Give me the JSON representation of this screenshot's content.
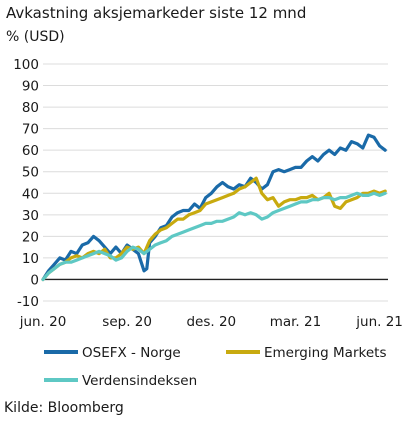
{
  "chart_data": {
    "type": "line",
    "title": "Avkastning aksjemarkeder siste 12 mnd",
    "ylabel": "% (USD)",
    "xlabel": "",
    "source": "Kilde: Bloomberg",
    "ylim": [
      -10,
      100
    ],
    "yticks": [
      -10,
      0,
      10,
      20,
      30,
      40,
      50,
      60,
      70,
      80,
      90,
      100
    ],
    "xlim": [
      0,
      12.3
    ],
    "xticks": [
      {
        "label": "jun. 20",
        "pos": 0
      },
      {
        "label": "sep. 20",
        "pos": 3
      },
      {
        "label": "des. 20",
        "pos": 6
      },
      {
        "label": "mar. 21",
        "pos": 9
      },
      {
        "label": "jun. 21",
        "pos": 12
      }
    ],
    "grid": true,
    "legend_position": "bottom",
    "series": [
      {
        "name": "OSEFX - Norge",
        "color": "#1a6aa8",
        "points": [
          [
            0.0,
            0
          ],
          [
            0.2,
            4
          ],
          [
            0.4,
            7
          ],
          [
            0.6,
            10
          ],
          [
            0.8,
            9
          ],
          [
            1.0,
            13
          ],
          [
            1.2,
            12
          ],
          [
            1.4,
            16
          ],
          [
            1.6,
            17
          ],
          [
            1.8,
            20
          ],
          [
            2.0,
            18
          ],
          [
            2.2,
            15
          ],
          [
            2.4,
            12
          ],
          [
            2.6,
            15
          ],
          [
            2.8,
            12
          ],
          [
            3.0,
            16
          ],
          [
            3.2,
            14
          ],
          [
            3.4,
            12
          ],
          [
            3.5,
            8
          ],
          [
            3.6,
            4
          ],
          [
            3.7,
            5
          ],
          [
            3.8,
            17
          ],
          [
            4.0,
            20
          ],
          [
            4.2,
            24
          ],
          [
            4.4,
            25
          ],
          [
            4.6,
            29
          ],
          [
            4.8,
            31
          ],
          [
            5.0,
            32
          ],
          [
            5.2,
            32
          ],
          [
            5.4,
            35
          ],
          [
            5.6,
            33
          ],
          [
            5.8,
            38
          ],
          [
            6.0,
            40
          ],
          [
            6.2,
            43
          ],
          [
            6.4,
            45
          ],
          [
            6.6,
            43
          ],
          [
            6.8,
            42
          ],
          [
            7.0,
            44
          ],
          [
            7.2,
            43
          ],
          [
            7.4,
            47
          ],
          [
            7.6,
            45
          ],
          [
            7.8,
            42
          ],
          [
            8.0,
            44
          ],
          [
            8.2,
            50
          ],
          [
            8.4,
            51
          ],
          [
            8.6,
            50
          ],
          [
            8.8,
            51
          ],
          [
            9.0,
            52
          ],
          [
            9.2,
            52
          ],
          [
            9.4,
            55
          ],
          [
            9.6,
            57
          ],
          [
            9.8,
            55
          ],
          [
            10.0,
            58
          ],
          [
            10.2,
            60
          ],
          [
            10.4,
            58
          ],
          [
            10.6,
            61
          ],
          [
            10.8,
            60
          ],
          [
            11.0,
            64
          ],
          [
            11.2,
            63
          ],
          [
            11.4,
            61
          ],
          [
            11.6,
            67
          ],
          [
            11.8,
            66
          ],
          [
            12.0,
            62
          ],
          [
            12.2,
            60
          ]
        ]
      },
      {
        "name": "Emerging Markets",
        "color": "#c8aa0f",
        "points": [
          [
            0.0,
            0
          ],
          [
            0.2,
            3
          ],
          [
            0.4,
            5
          ],
          [
            0.6,
            7
          ],
          [
            0.8,
            8
          ],
          [
            1.0,
            10
          ],
          [
            1.2,
            11
          ],
          [
            1.4,
            10
          ],
          [
            1.6,
            12
          ],
          [
            1.8,
            13
          ],
          [
            2.0,
            12
          ],
          [
            2.2,
            14
          ],
          [
            2.4,
            10
          ],
          [
            2.6,
            10
          ],
          [
            2.8,
            12
          ],
          [
            3.0,
            15
          ],
          [
            3.2,
            14
          ],
          [
            3.4,
            15
          ],
          [
            3.6,
            12
          ],
          [
            3.8,
            18
          ],
          [
            4.0,
            21
          ],
          [
            4.2,
            23
          ],
          [
            4.4,
            24
          ],
          [
            4.6,
            26
          ],
          [
            4.8,
            28
          ],
          [
            5.0,
            28
          ],
          [
            5.2,
            30
          ],
          [
            5.4,
            31
          ],
          [
            5.6,
            32
          ],
          [
            5.8,
            35
          ],
          [
            6.0,
            36
          ],
          [
            6.2,
            37
          ],
          [
            6.4,
            38
          ],
          [
            6.6,
            39
          ],
          [
            6.8,
            40
          ],
          [
            7.0,
            42
          ],
          [
            7.2,
            43
          ],
          [
            7.4,
            45
          ],
          [
            7.6,
            47
          ],
          [
            7.8,
            40
          ],
          [
            8.0,
            37
          ],
          [
            8.2,
            38
          ],
          [
            8.4,
            34
          ],
          [
            8.6,
            36
          ],
          [
            8.8,
            37
          ],
          [
            9.0,
            37
          ],
          [
            9.2,
            38
          ],
          [
            9.4,
            38
          ],
          [
            9.6,
            39
          ],
          [
            9.8,
            37
          ],
          [
            10.0,
            38
          ],
          [
            10.2,
            40
          ],
          [
            10.4,
            34
          ],
          [
            10.6,
            33
          ],
          [
            10.8,
            36
          ],
          [
            11.0,
            37
          ],
          [
            11.2,
            38
          ],
          [
            11.4,
            40
          ],
          [
            11.6,
            40
          ],
          [
            11.8,
            41
          ],
          [
            12.0,
            40
          ],
          [
            12.2,
            41
          ]
        ]
      },
      {
        "name": "Verdensindeksen",
        "color": "#5ec8c4",
        "points": [
          [
            0.0,
            0
          ],
          [
            0.2,
            3
          ],
          [
            0.4,
            5
          ],
          [
            0.6,
            7
          ],
          [
            0.8,
            8
          ],
          [
            1.0,
            8
          ],
          [
            1.2,
            9
          ],
          [
            1.4,
            10
          ],
          [
            1.6,
            11
          ],
          [
            1.8,
            12
          ],
          [
            2.0,
            13
          ],
          [
            2.2,
            12
          ],
          [
            2.4,
            11
          ],
          [
            2.6,
            9
          ],
          [
            2.8,
            10
          ],
          [
            3.0,
            13
          ],
          [
            3.2,
            15
          ],
          [
            3.4,
            14
          ],
          [
            3.6,
            12
          ],
          [
            3.8,
            14
          ],
          [
            4.0,
            16
          ],
          [
            4.2,
            17
          ],
          [
            4.4,
            18
          ],
          [
            4.6,
            20
          ],
          [
            4.8,
            21
          ],
          [
            5.0,
            22
          ],
          [
            5.2,
            23
          ],
          [
            5.4,
            24
          ],
          [
            5.6,
            25
          ],
          [
            5.8,
            26
          ],
          [
            6.0,
            26
          ],
          [
            6.2,
            27
          ],
          [
            6.4,
            27
          ],
          [
            6.6,
            28
          ],
          [
            6.8,
            29
          ],
          [
            7.0,
            31
          ],
          [
            7.2,
            30
          ],
          [
            7.4,
            31
          ],
          [
            7.6,
            30
          ],
          [
            7.8,
            28
          ],
          [
            8.0,
            29
          ],
          [
            8.2,
            31
          ],
          [
            8.4,
            32
          ],
          [
            8.6,
            33
          ],
          [
            8.8,
            34
          ],
          [
            9.0,
            35
          ],
          [
            9.2,
            36
          ],
          [
            9.4,
            36
          ],
          [
            9.6,
            37
          ],
          [
            9.8,
            37
          ],
          [
            10.0,
            38
          ],
          [
            10.2,
            38
          ],
          [
            10.4,
            37
          ],
          [
            10.6,
            38
          ],
          [
            10.8,
            38
          ],
          [
            11.0,
            39
          ],
          [
            11.2,
            40
          ],
          [
            11.4,
            39
          ],
          [
            11.6,
            39
          ],
          [
            11.8,
            40
          ],
          [
            12.0,
            39
          ],
          [
            12.2,
            40
          ]
        ]
      }
    ]
  }
}
